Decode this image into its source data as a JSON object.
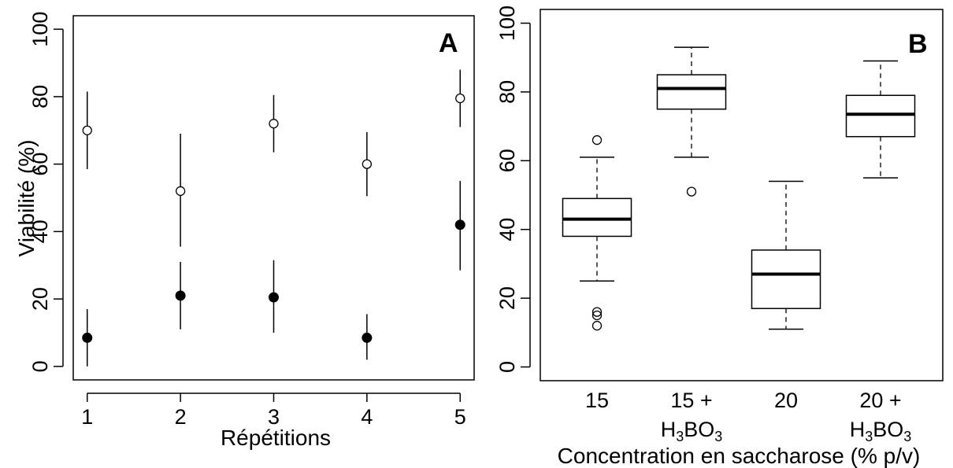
{
  "chart_data": [
    {
      "type": "scatter",
      "panel_label": "A",
      "xlabel": "Répétitions",
      "ylabel": "Viabilité (%)",
      "x_ticks": [
        "1",
        "2",
        "3",
        "4",
        "5"
      ],
      "y_ticks": [
        "0",
        "20",
        "40",
        "60",
        "80",
        "100"
      ],
      "xlim": [
        0.85,
        5.15
      ],
      "ylim": [
        -4,
        104
      ],
      "grid": false,
      "series": [
        {
          "marker": "open-circle",
          "points": [
            {
              "x": 1,
              "y": 70,
              "low": 58.5,
              "high": 81.5
            },
            {
              "x": 2,
              "y": 52,
              "low": 35.5,
              "high": 69
            },
            {
              "x": 3,
              "y": 72,
              "low": 63.5,
              "high": 80.5
            },
            {
              "x": 4,
              "y": 60,
              "low": 50.5,
              "high": 69.5
            },
            {
              "x": 5,
              "y": 79.5,
              "low": 71,
              "high": 88
            }
          ]
        },
        {
          "marker": "filled-circle",
          "points": [
            {
              "x": 1,
              "y": 8.5,
              "low": 0,
              "high": 17
            },
            {
              "x": 2,
              "y": 21,
              "low": 11,
              "high": 31
            },
            {
              "x": 3,
              "y": 20.5,
              "low": 10,
              "high": 31.5
            },
            {
              "x": 4,
              "y": 8.5,
              "low": 2,
              "high": 15.5
            },
            {
              "x": 5,
              "y": 42,
              "low": 28.5,
              "high": 55
            }
          ]
        }
      ]
    },
    {
      "type": "boxplot",
      "panel_label": "B",
      "xlabel": "Concentration en saccharose (% p/v)",
      "ylabel": "",
      "y_ticks": [
        "0",
        "20",
        "40",
        "60",
        "80",
        "100"
      ],
      "ylim": [
        -4,
        104
      ],
      "grid": false,
      "categories": [
        {
          "line1": "15",
          "line2": null
        },
        {
          "line1": "15 +",
          "line2": {
            "base": "H",
            "sub1": "3",
            "mid": "BO",
            "sub2": "3"
          }
        },
        {
          "line1": "20",
          "line2": null
        },
        {
          "line1": "20 +",
          "line2": {
            "base": "H",
            "sub1": "3",
            "mid": "BO",
            "sub2": "3"
          }
        }
      ],
      "boxes": [
        {
          "whisker_low": 25,
          "q1": 38,
          "median": 43,
          "q3": 49,
          "whisker_high": 61,
          "outliers": [
            66,
            16,
            15,
            12
          ]
        },
        {
          "whisker_low": 61,
          "q1": 75,
          "median": 81,
          "q3": 85,
          "whisker_high": 93,
          "outliers": [
            51
          ]
        },
        {
          "whisker_low": 11,
          "q1": 17,
          "median": 27,
          "q3": 34,
          "whisker_high": 54,
          "outliers": []
        },
        {
          "whisker_low": 55,
          "q1": 67,
          "median": 73.5,
          "q3": 79,
          "whisker_high": 89,
          "outliers": []
        }
      ]
    }
  ]
}
